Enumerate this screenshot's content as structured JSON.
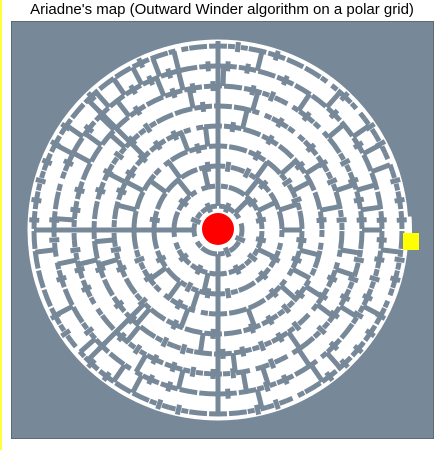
{
  "window": {
    "title": "Ariadne's map (Outward Winder algorithm on a polar grid)"
  },
  "maze": {
    "grid": "polar",
    "algorithm": "Outward Winder",
    "rings": 9,
    "start_marker": "red-circle",
    "goal_marker": "yellow-square"
  },
  "colors": {
    "background": "#778899",
    "path": "#ffffff",
    "start": "#ff0000",
    "goal": "#ffff00",
    "border_left": "#ffff3a"
  }
}
